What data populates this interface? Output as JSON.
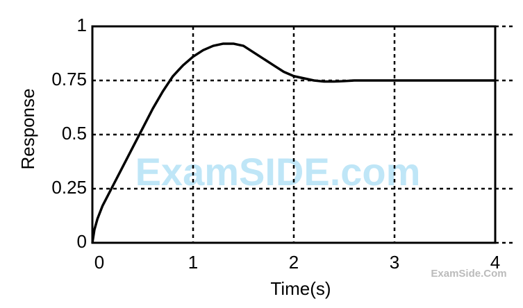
{
  "chart_data": {
    "type": "line",
    "x_label": "Time(s)",
    "y_label": "Response",
    "x": [
      0,
      0.02,
      0.05,
      0.1,
      0.2,
      0.3,
      0.4,
      0.5,
      0.6,
      0.7,
      0.8,
      0.9,
      1.0,
      1.1,
      1.2,
      1.3,
      1.4,
      1.5,
      1.6,
      1.7,
      1.8,
      1.9,
      2.0,
      2.1,
      2.2,
      2.3,
      2.4,
      2.5,
      2.6,
      2.8,
      3.0,
      3.5,
      4.0
    ],
    "series": [
      {
        "name": "Response",
        "color": "#000000",
        "values": [
          0,
          0.06,
          0.11,
          0.17,
          0.26,
          0.35,
          0.44,
          0.53,
          0.62,
          0.7,
          0.77,
          0.82,
          0.86,
          0.89,
          0.91,
          0.92,
          0.92,
          0.91,
          0.88,
          0.85,
          0.82,
          0.79,
          0.77,
          0.76,
          0.75,
          0.745,
          0.745,
          0.747,
          0.75,
          0.75,
          0.75,
          0.75,
          0.75
        ]
      }
    ],
    "xlim": [
      0,
      4
    ],
    "xticks": [
      0,
      1,
      2,
      3,
      4
    ],
    "ylim": [
      0,
      1
    ],
    "yticks": [
      0,
      0.25,
      0.5,
      0.75,
      1
    ],
    "grid": true,
    "watermarks": [
      "ExamSIDE.com",
      "ExamSide.Com"
    ]
  }
}
